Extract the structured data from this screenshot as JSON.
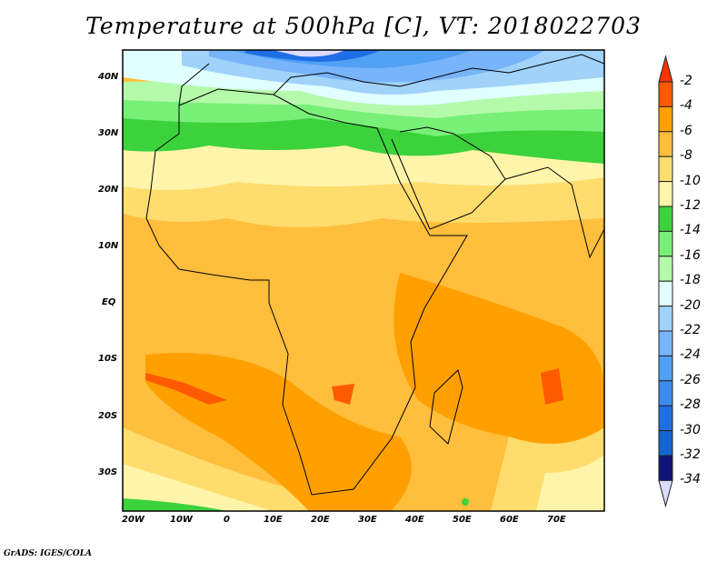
{
  "title": "Temperature at 500hPa [C], VT: 2018022703",
  "credit": "GrADS: IGES/COLA",
  "variable": "Temperature at 500hPa",
  "units": "C",
  "valid_time": "2018022703",
  "lat_labels": [
    "40N",
    "30N",
    "20N",
    "10N",
    "EQ",
    "10S",
    "20S",
    "30S"
  ],
  "lon_labels": [
    "20W",
    "10W",
    "0",
    "10E",
    "20E",
    "30E",
    "40E",
    "50E",
    "60E",
    "70E"
  ],
  "colorbar": {
    "labels": [
      "-2",
      "-4",
      "-6",
      "-8",
      "-10",
      "-12",
      "-14",
      "-16",
      "-18",
      "-20",
      "-22",
      "-24",
      "-26",
      "-28",
      "-30",
      "-32",
      "-34"
    ],
    "over_color": "#ff3300",
    "under_color": "#dcdcff",
    "colors": [
      "#ff5a00",
      "#ffa000",
      "#ffbe3c",
      "#ffdc6e",
      "#fff5aa",
      "#3cd23c",
      "#78f078",
      "#b4faaa",
      "#e1ffff",
      "#a0d2fa",
      "#78b4fa",
      "#50a0f5",
      "#3c8cf0",
      "#1e6ee6",
      "#1464d2",
      "#0f1478"
    ]
  }
}
